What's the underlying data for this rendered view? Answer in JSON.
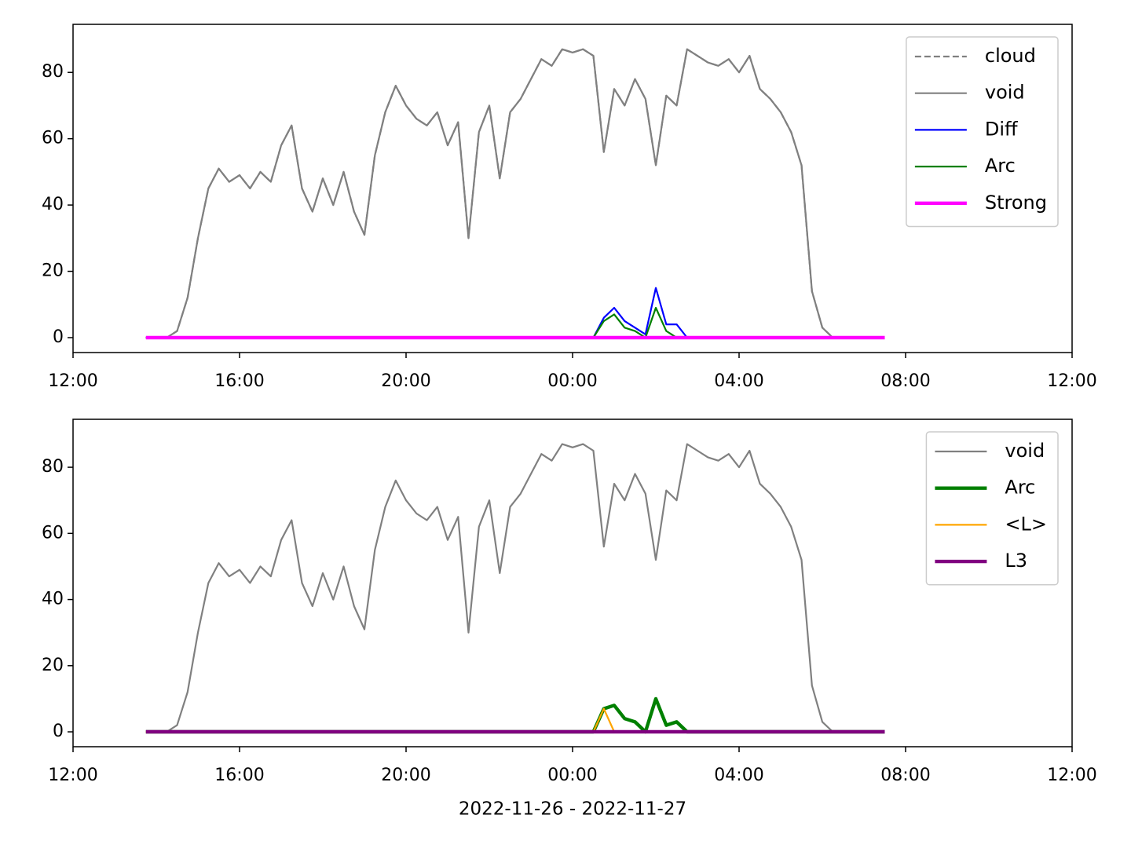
{
  "chart_data": [
    {
      "type": "line",
      "x": [
        "2022-11-26T13:45",
        "2022-11-26T14:00",
        "2022-11-26T14:15",
        "2022-11-26T14:30",
        "2022-11-26T14:45",
        "2022-11-26T15:00",
        "2022-11-26T15:15",
        "2022-11-26T15:30",
        "2022-11-26T15:45",
        "2022-11-26T16:00",
        "2022-11-26T16:15",
        "2022-11-26T16:30",
        "2022-11-26T16:45",
        "2022-11-26T17:00",
        "2022-11-26T17:15",
        "2022-11-26T17:30",
        "2022-11-26T17:45",
        "2022-11-26T18:00",
        "2022-11-26T18:15",
        "2022-11-26T18:30",
        "2022-11-26T18:45",
        "2022-11-26T19:00",
        "2022-11-26T19:15",
        "2022-11-26T19:30",
        "2022-11-26T19:45",
        "2022-11-26T20:00",
        "2022-11-26T20:15",
        "2022-11-26T20:30",
        "2022-11-26T20:45",
        "2022-11-26T21:00",
        "2022-11-26T21:15",
        "2022-11-26T21:30",
        "2022-11-26T21:45",
        "2022-11-26T22:00",
        "2022-11-26T22:15",
        "2022-11-26T22:30",
        "2022-11-26T22:45",
        "2022-11-26T23:00",
        "2022-11-26T23:15",
        "2022-11-26T23:30",
        "2022-11-26T23:45",
        "2022-11-27T00:00",
        "2022-11-27T00:15",
        "2022-11-27T00:30",
        "2022-11-27T00:45",
        "2022-11-27T01:00",
        "2022-11-27T01:15",
        "2022-11-27T01:30",
        "2022-11-27T01:45",
        "2022-11-27T02:00",
        "2022-11-27T02:15",
        "2022-11-27T02:30",
        "2022-11-27T02:45",
        "2022-11-27T03:00",
        "2022-11-27T03:15",
        "2022-11-27T03:30",
        "2022-11-27T03:45",
        "2022-11-27T04:00",
        "2022-11-27T04:15",
        "2022-11-27T04:30",
        "2022-11-27T04:45",
        "2022-11-27T05:00",
        "2022-11-27T05:15",
        "2022-11-27T05:30",
        "2022-11-27T05:45",
        "2022-11-27T06:00",
        "2022-11-27T06:15",
        "2022-11-27T06:30",
        "2022-11-27T06:45",
        "2022-11-27T07:00",
        "2022-11-27T07:15",
        "2022-11-27T07:30"
      ],
      "series": [
        {
          "name": "cloud",
          "color": "#808080",
          "linestyle": "dashed",
          "linewidth": 1,
          "values": [
            0,
            0,
            0,
            2,
            12,
            30,
            45,
            51,
            47,
            49,
            45,
            50,
            47,
            58,
            64,
            45,
            38,
            48,
            40,
            50,
            38,
            31,
            55,
            68,
            76,
            70,
            66,
            64,
            68,
            58,
            65,
            30,
            62,
            70,
            48,
            68,
            72,
            78,
            84,
            82,
            87,
            86,
            87,
            85,
            56,
            75,
            70,
            78,
            72,
            52,
            73,
            70,
            87,
            85,
            83,
            82,
            84,
            80,
            85,
            75,
            72,
            68,
            62,
            52,
            14,
            3,
            0,
            0,
            0,
            0,
            0,
            0
          ]
        },
        {
          "name": "void",
          "color": "#808080",
          "linestyle": "solid",
          "linewidth": 1,
          "values": [
            0,
            0,
            0,
            2,
            12,
            30,
            45,
            51,
            47,
            49,
            45,
            50,
            47,
            58,
            64,
            45,
            38,
            48,
            40,
            50,
            38,
            31,
            55,
            68,
            76,
            70,
            66,
            64,
            68,
            58,
            65,
            30,
            62,
            70,
            48,
            68,
            72,
            78,
            84,
            82,
            87,
            86,
            87,
            85,
            56,
            75,
            70,
            78,
            72,
            52,
            73,
            70,
            87,
            85,
            83,
            82,
            84,
            80,
            85,
            75,
            72,
            68,
            62,
            52,
            14,
            3,
            0,
            0,
            0,
            0,
            0,
            0
          ]
        },
        {
          "name": "Diff",
          "color": "#0000ff",
          "linestyle": "solid",
          "linewidth": 1,
          "values": [
            0,
            0,
            0,
            0,
            0,
            0,
            0,
            0,
            0,
            0,
            0,
            0,
            0,
            0,
            0,
            0,
            0,
            0,
            0,
            0,
            0,
            0,
            0,
            0,
            0,
            0,
            0,
            0,
            0,
            0,
            0,
            0,
            0,
            0,
            0,
            0,
            0,
            0,
            0,
            0,
            0,
            0,
            0,
            0,
            6,
            9,
            5,
            3,
            1,
            15,
            4,
            4,
            0,
            0,
            0,
            0,
            0,
            0,
            0,
            0,
            0,
            0,
            0,
            0,
            0,
            0,
            0,
            0,
            0,
            0,
            0,
            0
          ]
        },
        {
          "name": "Arc",
          "color": "#008000",
          "linestyle": "solid",
          "linewidth": 1,
          "values": [
            0,
            0,
            0,
            0,
            0,
            0,
            0,
            0,
            0,
            0,
            0,
            0,
            0,
            0,
            0,
            0,
            0,
            0,
            0,
            0,
            0,
            0,
            0,
            0,
            0,
            0,
            0,
            0,
            0,
            0,
            0,
            0,
            0,
            0,
            0,
            0,
            0,
            0,
            0,
            0,
            0,
            0,
            0,
            0,
            5,
            7,
            3,
            2,
            0,
            9,
            2,
            0,
            0,
            0,
            0,
            0,
            0,
            0,
            0,
            0,
            0,
            0,
            0,
            0,
            0,
            0,
            0,
            0,
            0,
            0,
            0,
            0
          ]
        },
        {
          "name": "Strong",
          "color": "#ff00ff",
          "linestyle": "solid",
          "linewidth": 2,
          "values": [
            0,
            0,
            0,
            0,
            0,
            0,
            0,
            0,
            0,
            0,
            0,
            0,
            0,
            0,
            0,
            0,
            0,
            0,
            0,
            0,
            0,
            0,
            0,
            0,
            0,
            0,
            0,
            0,
            0,
            0,
            0,
            0,
            0,
            0,
            0,
            0,
            0,
            0,
            0,
            0,
            0,
            0,
            0,
            0,
            0,
            0,
            0,
            0,
            0,
            0,
            0,
            0,
            0,
            0,
            0,
            0,
            0,
            0,
            0,
            0,
            0,
            0,
            0,
            0,
            0,
            0,
            0,
            0,
            0,
            0,
            0,
            0
          ]
        }
      ],
      "xlim": [
        "2022-11-26T12:00",
        "2022-11-27T12:00"
      ],
      "xticks": [
        {
          "value": "2022-11-26T12:00",
          "label": "12:00"
        },
        {
          "value": "2022-11-26T16:00",
          "label": "16:00"
        },
        {
          "value": "2022-11-26T20:00",
          "label": "20:00"
        },
        {
          "value": "2022-11-27T00:00",
          "label": "00:00"
        },
        {
          "value": "2022-11-27T04:00",
          "label": "04:00"
        },
        {
          "value": "2022-11-27T08:00",
          "label": "08:00"
        },
        {
          "value": "2022-11-27T12:00",
          "label": "12:00"
        }
      ],
      "ylim": [
        -4.5,
        94.5
      ],
      "yticks": [
        0,
        20,
        40,
        60,
        80
      ],
      "legend": "upper right"
    },
    {
      "type": "line",
      "x": [
        "2022-11-26T13:45",
        "2022-11-26T14:00",
        "2022-11-26T14:15",
        "2022-11-26T14:30",
        "2022-11-26T14:45",
        "2022-11-26T15:00",
        "2022-11-26T15:15",
        "2022-11-26T15:30",
        "2022-11-26T15:45",
        "2022-11-26T16:00",
        "2022-11-26T16:15",
        "2022-11-26T16:30",
        "2022-11-26T16:45",
        "2022-11-26T17:00",
        "2022-11-26T17:15",
        "2022-11-26T17:30",
        "2022-11-26T17:45",
        "2022-11-26T18:00",
        "2022-11-26T18:15",
        "2022-11-26T18:30",
        "2022-11-26T18:45",
        "2022-11-26T19:00",
        "2022-11-26T19:15",
        "2022-11-26T19:30",
        "2022-11-26T19:45",
        "2022-11-26T20:00",
        "2022-11-26T20:15",
        "2022-11-26T20:30",
        "2022-11-26T20:45",
        "2022-11-26T21:00",
        "2022-11-26T21:15",
        "2022-11-26T21:30",
        "2022-11-26T21:45",
        "2022-11-26T22:00",
        "2022-11-26T22:15",
        "2022-11-26T22:30",
        "2022-11-26T22:45",
        "2022-11-26T23:00",
        "2022-11-26T23:15",
        "2022-11-26T23:30",
        "2022-11-26T23:45",
        "2022-11-27T00:00",
        "2022-11-27T00:15",
        "2022-11-27T00:30",
        "2022-11-27T00:45",
        "2022-11-27T01:00",
        "2022-11-27T01:15",
        "2022-11-27T01:30",
        "2022-11-27T01:45",
        "2022-11-27T02:00",
        "2022-11-27T02:15",
        "2022-11-27T02:30",
        "2022-11-27T02:45",
        "2022-11-27T03:00",
        "2022-11-27T03:15",
        "2022-11-27T03:30",
        "2022-11-27T03:45",
        "2022-11-27T04:00",
        "2022-11-27T04:15",
        "2022-11-27T04:30",
        "2022-11-27T04:45",
        "2022-11-27T05:00",
        "2022-11-27T05:15",
        "2022-11-27T05:30",
        "2022-11-27T05:45",
        "2022-11-27T06:00",
        "2022-11-27T06:15",
        "2022-11-27T06:30",
        "2022-11-27T06:45",
        "2022-11-27T07:00",
        "2022-11-27T07:15",
        "2022-11-27T07:30"
      ],
      "series": [
        {
          "name": "void",
          "color": "#808080",
          "linestyle": "solid",
          "linewidth": 1,
          "values": [
            0,
            0,
            0,
            2,
            12,
            30,
            45,
            51,
            47,
            49,
            45,
            50,
            47,
            58,
            64,
            45,
            38,
            48,
            40,
            50,
            38,
            31,
            55,
            68,
            76,
            70,
            66,
            64,
            68,
            58,
            65,
            30,
            62,
            70,
            48,
            68,
            72,
            78,
            84,
            82,
            87,
            86,
            87,
            85,
            56,
            75,
            70,
            78,
            72,
            52,
            73,
            70,
            87,
            85,
            83,
            82,
            84,
            80,
            85,
            75,
            72,
            68,
            62,
            52,
            14,
            3,
            0,
            0,
            0,
            0,
            0,
            0
          ]
        },
        {
          "name": "Arc",
          "color": "#008000",
          "linestyle": "solid",
          "linewidth": 2,
          "values": [
            0,
            0,
            0,
            0,
            0,
            0,
            0,
            0,
            0,
            0,
            0,
            0,
            0,
            0,
            0,
            0,
            0,
            0,
            0,
            0,
            0,
            0,
            0,
            0,
            0,
            0,
            0,
            0,
            0,
            0,
            0,
            0,
            0,
            0,
            0,
            0,
            0,
            0,
            0,
            0,
            0,
            0,
            0,
            0,
            7,
            8,
            4,
            3,
            0,
            10,
            2,
            3,
            0,
            0,
            0,
            0,
            0,
            0,
            0,
            0,
            0,
            0,
            0,
            0,
            0,
            0,
            0,
            0,
            0,
            0,
            0,
            0
          ]
        },
        {
          "name": "<L>",
          "color": "#ffa500",
          "linestyle": "solid",
          "linewidth": 1,
          "values": [
            0,
            0,
            0,
            0,
            0,
            0,
            0,
            0,
            0,
            0,
            0,
            0,
            0,
            0,
            0,
            0,
            0,
            0,
            0,
            0,
            0,
            0,
            0,
            0,
            0,
            0,
            0,
            0,
            0,
            0,
            0,
            0,
            0,
            0,
            0,
            0,
            0,
            0,
            0,
            0,
            0,
            0,
            0,
            0,
            7,
            0,
            0,
            0,
            0,
            0,
            0,
            0,
            0,
            0,
            0,
            0,
            0,
            0,
            0,
            0,
            0,
            0,
            0,
            0,
            0,
            0,
            0,
            0,
            0,
            0,
            0,
            0
          ]
        },
        {
          "name": "L3",
          "color": "#800080",
          "linestyle": "solid",
          "linewidth": 2,
          "values": [
            0,
            0,
            0,
            0,
            0,
            0,
            0,
            0,
            0,
            0,
            0,
            0,
            0,
            0,
            0,
            0,
            0,
            0,
            0,
            0,
            0,
            0,
            0,
            0,
            0,
            0,
            0,
            0,
            0,
            0,
            0,
            0,
            0,
            0,
            0,
            0,
            0,
            0,
            0,
            0,
            0,
            0,
            0,
            0,
            0,
            0,
            0,
            0,
            0,
            0,
            0,
            0,
            0,
            0,
            0,
            0,
            0,
            0,
            0,
            0,
            0,
            0,
            0,
            0,
            0,
            0,
            0,
            0,
            0,
            0,
            0,
            0
          ]
        }
      ],
      "xlim": [
        "2022-11-26T12:00",
        "2022-11-27T12:00"
      ],
      "xticks": [
        {
          "value": "2022-11-26T12:00",
          "label": "12:00"
        },
        {
          "value": "2022-11-26T16:00",
          "label": "16:00"
        },
        {
          "value": "2022-11-26T20:00",
          "label": "20:00"
        },
        {
          "value": "2022-11-27T00:00",
          "label": "00:00"
        },
        {
          "value": "2022-11-27T04:00",
          "label": "04:00"
        },
        {
          "value": "2022-11-27T08:00",
          "label": "08:00"
        },
        {
          "value": "2022-11-27T12:00",
          "label": "12:00"
        }
      ],
      "ylim": [
        -4.5,
        94.5
      ],
      "yticks": [
        0,
        20,
        40,
        60,
        80
      ],
      "legend": "upper right",
      "xlabel": "2022-11-26 - 2022-11-27"
    }
  ]
}
